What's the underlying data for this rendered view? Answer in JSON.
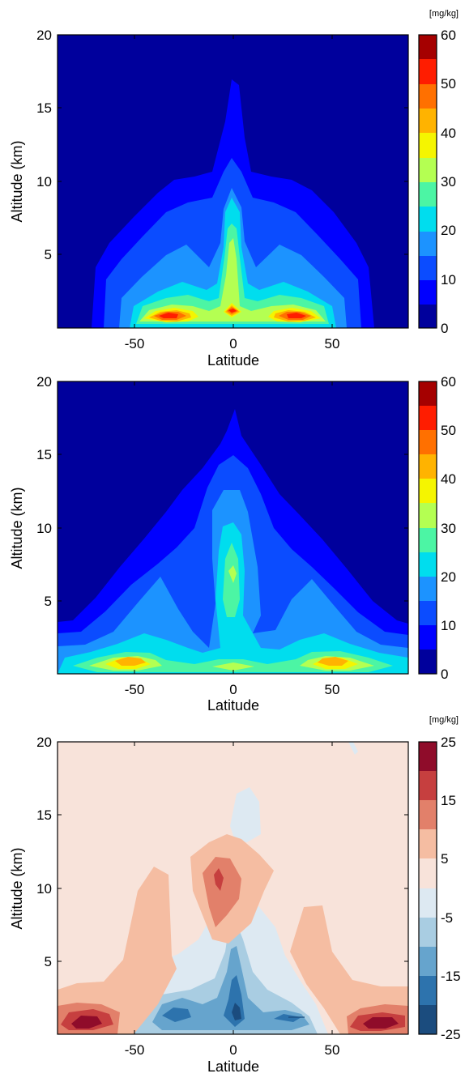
{
  "chart_data": [
    {
      "type": "contour",
      "title": "",
      "xlabel": "Latitude",
      "ylabel": "Altitude (km)",
      "xlim": [
        -90,
        90
      ],
      "ylim": [
        0,
        20
      ],
      "x_ticks": [
        "-50",
        "0",
        "50"
      ],
      "y_ticks": [
        "5",
        "10",
        "15",
        "20"
      ],
      "colorbar": {
        "unit": "[mg/kg]",
        "levels": [
          0,
          5,
          10,
          15,
          20,
          25,
          30,
          35,
          40,
          45,
          50,
          55,
          60
        ],
        "tick_labels": [
          "0",
          "10",
          "20",
          "30",
          "40",
          "50",
          "60"
        ],
        "colors": [
          "#00009c",
          "#0000ff",
          "#0b4cff",
          "#1c93ff",
          "#00ddee",
          "#4cf5a4",
          "#b4ff52",
          "#f5f500",
          "#ffb300",
          "#ff7000",
          "#ff1d00",
          "#a50000"
        ]
      },
      "features": [
        {
          "name": "southern mid-latitude maximum",
          "lat": -42,
          "alt": 1.0,
          "value": 55
        },
        {
          "name": "equatorial maximum",
          "lat": 0,
          "alt": 1.2,
          "value": 55
        },
        {
          "name": "northern mid-latitude maximum",
          "lat": 42,
          "alt": 1.0,
          "value": 55
        },
        {
          "name": "equatorial column top",
          "lat": 0,
          "alt": 17,
          "value": 5
        }
      ]
    },
    {
      "type": "contour",
      "title": "",
      "xlabel": "Latitude",
      "ylabel": "Altitude (km)",
      "xlim": [
        -90,
        90
      ],
      "ylim": [
        0,
        20
      ],
      "x_ticks": [
        "-50",
        "0",
        "50"
      ],
      "y_ticks": [
        "5",
        "10",
        "15",
        "20"
      ],
      "colorbar": {
        "unit": "",
        "levels": [
          0,
          5,
          10,
          15,
          20,
          25,
          30,
          35,
          40,
          45,
          50,
          55,
          60
        ],
        "tick_labels": [
          "0",
          "10",
          "20",
          "30",
          "40",
          "50",
          "60"
        ],
        "colors": [
          "#00009c",
          "#0000ff",
          "#0b4cff",
          "#1c93ff",
          "#00ddee",
          "#4cf5a4",
          "#b4ff52",
          "#f5f500",
          "#ffb300",
          "#ff7000",
          "#ff1d00",
          "#a50000"
        ]
      },
      "features": [
        {
          "name": "southern mid-latitude maximum",
          "lat": -48,
          "alt": 1.1,
          "value": 45
        },
        {
          "name": "northern mid-latitude maximum",
          "lat": 48,
          "alt": 1.1,
          "value": 45
        },
        {
          "name": "equatorial column maximum",
          "lat": 0,
          "alt": 8,
          "value": 30
        },
        {
          "name": "equatorial column top",
          "lat": 0,
          "alt": 16.5,
          "value": 5
        }
      ]
    },
    {
      "type": "contour",
      "title": "",
      "xlabel": "Latitude",
      "ylabel": "Altitude (km)",
      "xlim": [
        -90,
        90
      ],
      "ylim": [
        0,
        20
      ],
      "x_ticks": [
        "-50",
        "0",
        "50"
      ],
      "y_ticks": [
        "5",
        "10",
        "15",
        "20"
      ],
      "colorbar": {
        "unit": "[mg/kg]",
        "levels": [
          -25,
          -20,
          -15,
          -10,
          -5,
          0,
          5,
          10,
          15,
          20,
          25
        ],
        "tick_labels": [
          "-25",
          "-15",
          "-5",
          "5",
          "15",
          "25"
        ],
        "colors": [
          "#1b4c7e",
          "#2d73ad",
          "#66a4cd",
          "#a9cde2",
          "#dde9f2",
          "#f8e3da",
          "#f5bda2",
          "#e2806a",
          "#c63f3f",
          "#8f0c2a"
        ]
      },
      "features": [
        {
          "name": "positive difference maximum south",
          "lat": -78,
          "alt": 1.0,
          "value": 22
        },
        {
          "name": "positive difference maximum north",
          "lat": 75,
          "alt": 1.0,
          "value": 22
        },
        {
          "name": "upper positive difference maximum",
          "lat": -8,
          "alt": 10.5,
          "value": 17
        },
        {
          "name": "negative difference minimum",
          "lat": 2,
          "alt": 1.8,
          "value": -22
        }
      ]
    }
  ]
}
